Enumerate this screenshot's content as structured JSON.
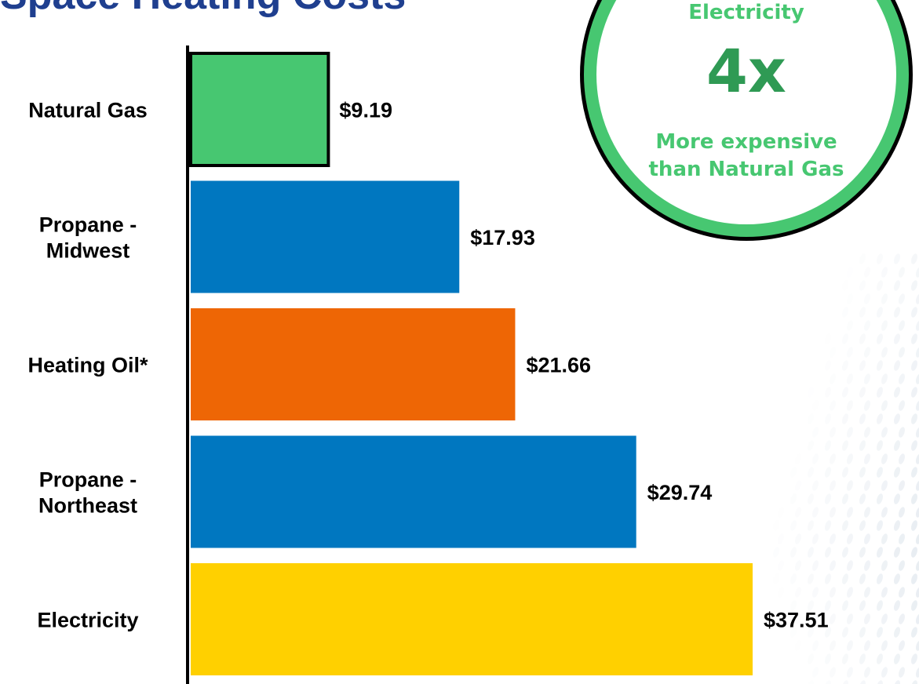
{
  "header": {
    "title": "Space Heating Costs"
  },
  "callout": {
    "top_text": "Electricity",
    "big_text": "4x",
    "line1": "More expensive",
    "line2": "than Natural Gas",
    "ring_color": "#47c771",
    "text_color": "#47c771"
  },
  "chart_data": {
    "type": "bar",
    "orientation": "horizontal",
    "categories": [
      [
        "Natural Gas"
      ],
      [
        "Propane -",
        "Midwest"
      ],
      [
        "Heating Oil*"
      ],
      [
        "Propane -",
        "Northeast"
      ],
      [
        "Electricity"
      ]
    ],
    "values": [
      9.19,
      17.93,
      21.66,
      29.74,
      37.51
    ],
    "value_labels": [
      "$9.19",
      "$17.93",
      "$21.66",
      "$29.74",
      "$37.51"
    ],
    "colors": [
      "#47c771",
      "#0077c0",
      "#ee6605",
      "#0077c0",
      "#ffd000"
    ],
    "highlighted_bar": "Natural Gas",
    "xlim": [
      0,
      37.51
    ],
    "grid": false,
    "legend": "none"
  }
}
